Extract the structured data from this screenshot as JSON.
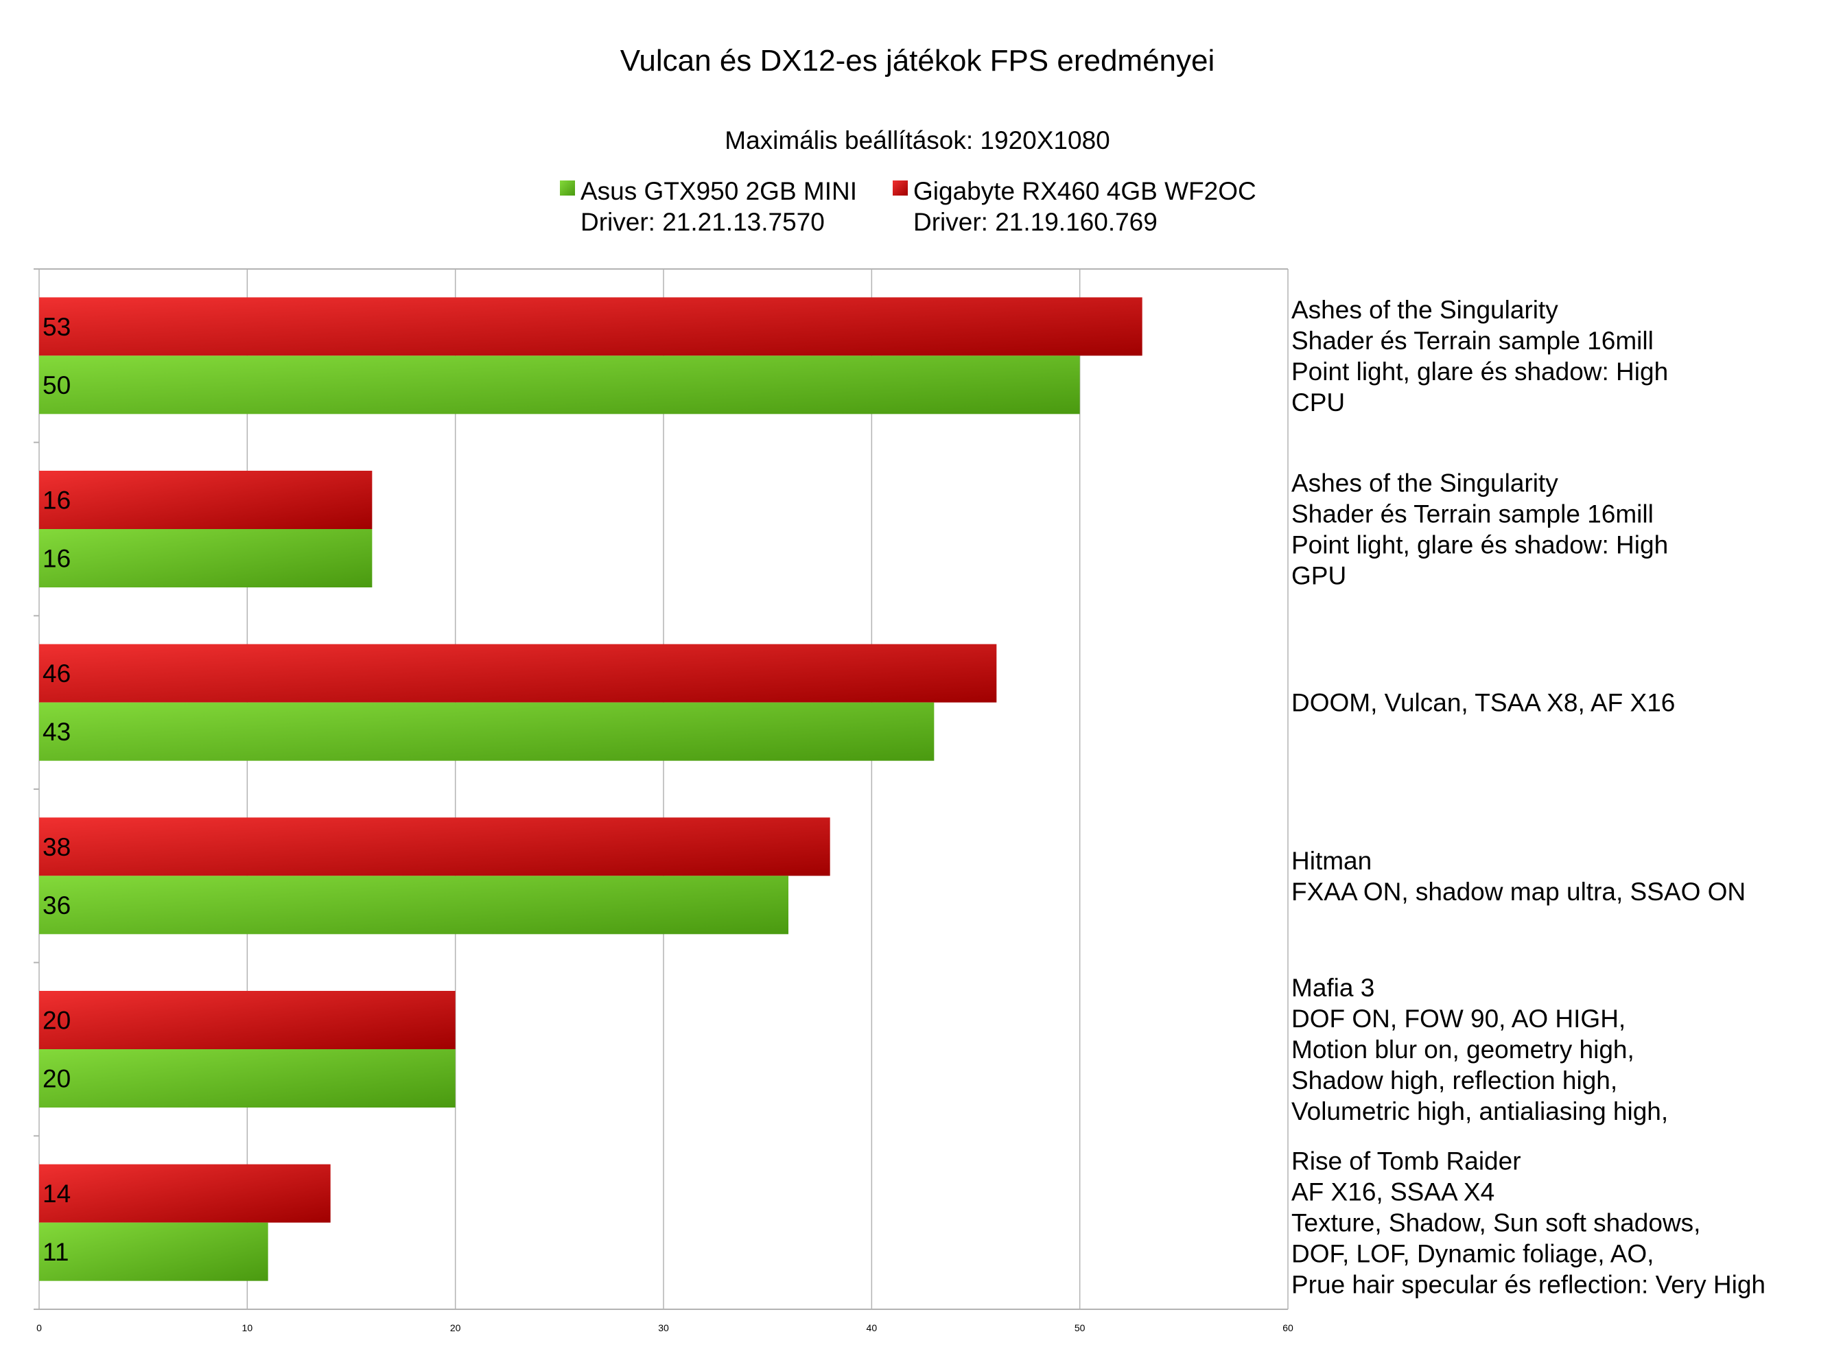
{
  "chart_data": {
    "type": "bar",
    "orientation": "horizontal",
    "title": "Vulcan és DX12-es játékok FPS eredményei",
    "subtitle": "Maximális beállítások: 1920X1080",
    "legend_position": "top",
    "grid": true,
    "xlim": [
      0,
      60
    ],
    "x_ticks": [
      "0",
      "10",
      "20",
      "30",
      "40",
      "50",
      "60"
    ],
    "categories": [
      [
        "Ashes of the Singularity",
        "Shader és Terrain sample 16mill",
        "Point light, glare és shadow: High",
        "CPU"
      ],
      [
        "Ashes of the Singularity",
        "Shader és Terrain sample 16mill",
        "Point light, glare és shadow: High",
        "GPU"
      ],
      [
        "DOOM, Vulcan, TSAA X8, AF X16"
      ],
      [
        "Hitman",
        "FXAA ON, shadow map ultra, SSAO ON"
      ],
      [
        "Mafia 3",
        "DOF ON, FOW 90, AO HIGH,",
        "Motion blur on, geometry high,",
        "Shadow high, reflection high,",
        "Volumetric high, antialiasing high,"
      ],
      [
        "Rise of Tomb Raider",
        "AF X16, SSAA X4",
        "Texture, Shadow, Sun soft shadows,",
        "DOF, LOF, Dynamic foliage, AO,",
        "Prue hair specular és reflection: Very High"
      ]
    ],
    "series": [
      {
        "name": "Asus GTX950 2GB MINI",
        "name_line2": "Driver: 21.21.13.7570",
        "color": "#5aa821",
        "color_light": "#83d93a",
        "color_dark": "#4a9a10",
        "values": [
          50,
          16,
          43,
          36,
          20,
          11
        ]
      },
      {
        "name": "Gigabyte RX460 4GB WF2OC",
        "name_line2": "Driver: 21.19.160.769",
        "color": "#c8141a",
        "color_light": "#f03030",
        "color_dark": "#a00000",
        "values": [
          53,
          16,
          46,
          38,
          20,
          14
        ]
      }
    ]
  }
}
